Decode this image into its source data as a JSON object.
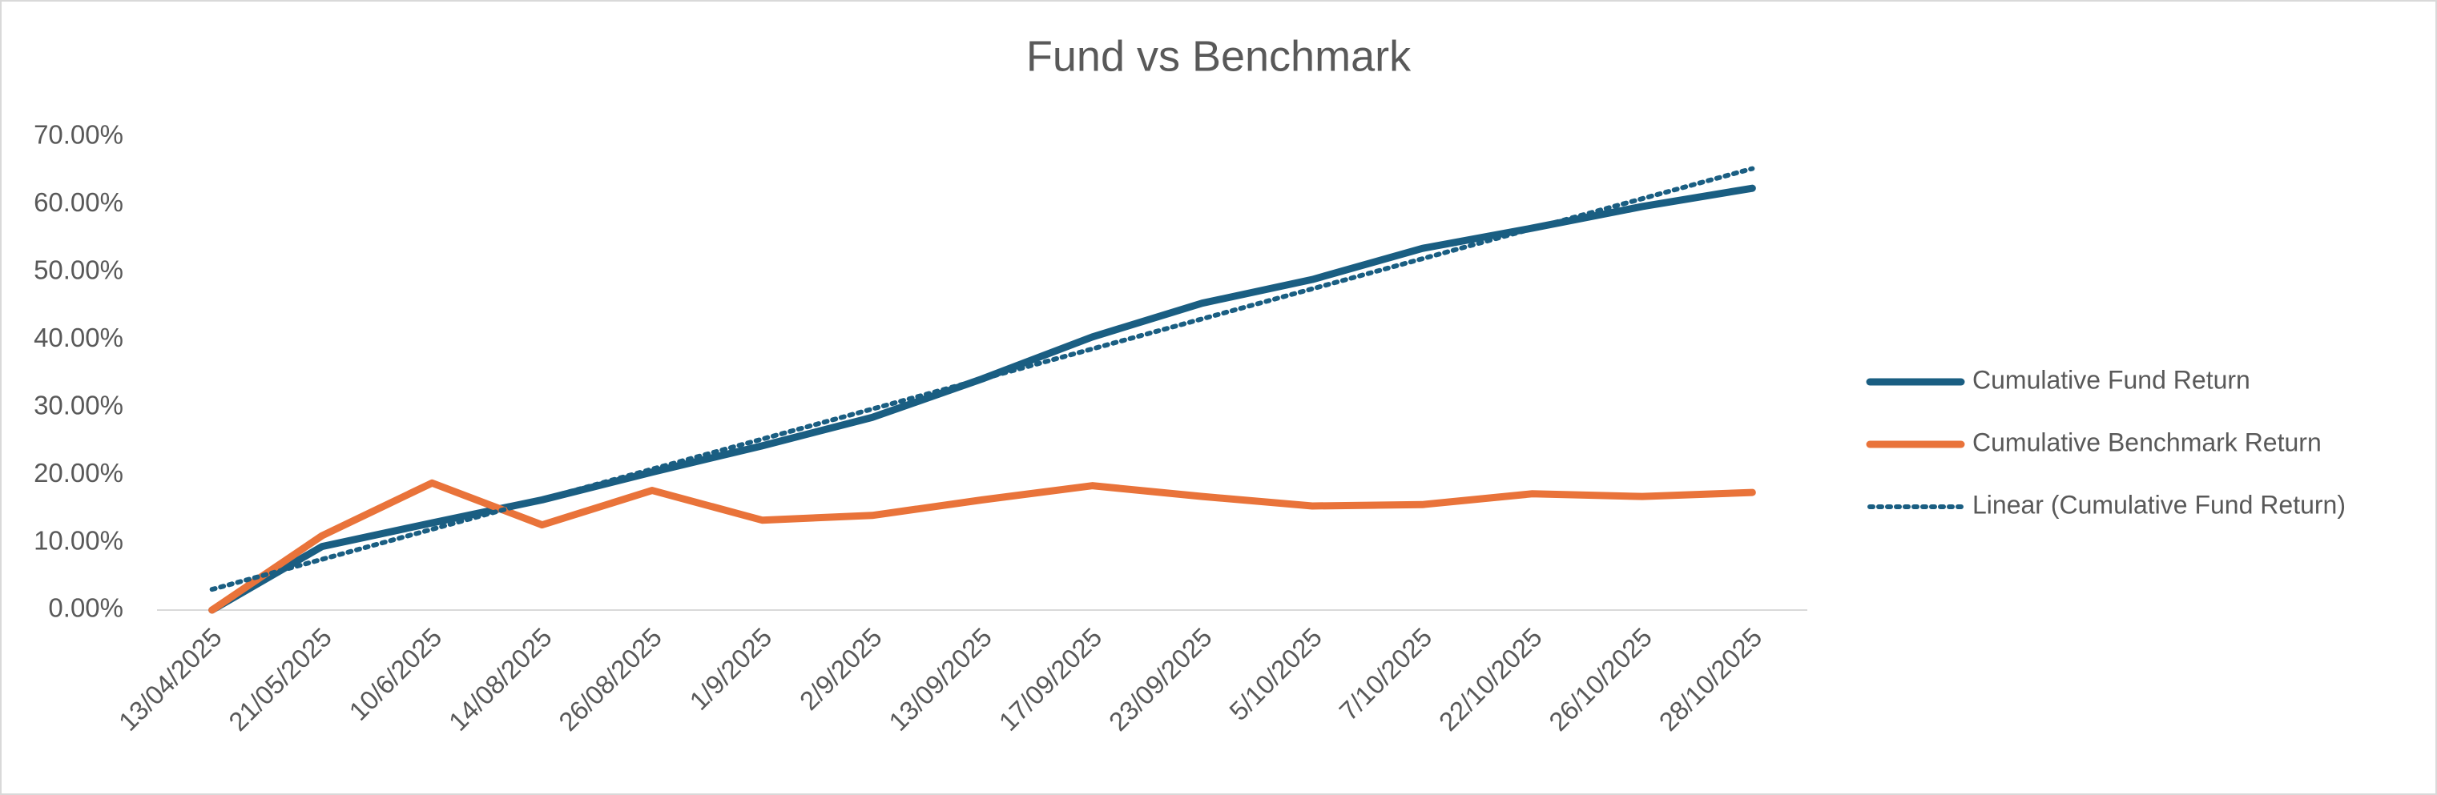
{
  "chart_data": {
    "type": "line",
    "title": "Fund vs Benchmark",
    "categories": [
      "13/04/2025",
      "21/05/2025",
      "10/6/2025",
      "14/08/2025",
      "26/08/2025",
      "1/9/2025",
      "2/9/2025",
      "13/09/2025",
      "17/09/2025",
      "23/09/2025",
      "5/10/2025",
      "7/10/2025",
      "22/10/2025",
      "26/10/2025",
      "28/10/2025"
    ],
    "series": [
      {
        "name": "Cumulative Fund Return",
        "color": "#1a5e82",
        "values": [
          0,
          9.4,
          12.9,
          16.3,
          20.4,
          24.3,
          28.5,
          34.2,
          40.4,
          45.4,
          48.9,
          53.5,
          56.5,
          59.7,
          62.4
        ]
      },
      {
        "name": "Cumulative Benchmark Return",
        "color": "#e9733a",
        "values": [
          0,
          11.0,
          18.8,
          12.6,
          17.7,
          13.3,
          14.0,
          16.3,
          18.4,
          16.8,
          15.4,
          15.6,
          17.2,
          16.8,
          17.4
        ]
      }
    ],
    "trendline": {
      "name": "Linear (Cumulative Fund Return)",
      "color": "#1a5e82",
      "type": "linear"
    },
    "ylim": [
      0,
      70
    ],
    "yticks": [
      {
        "value": 0,
        "label": "0.00%"
      },
      {
        "value": 10,
        "label": "10.00%"
      },
      {
        "value": 20,
        "label": "20.00%"
      },
      {
        "value": 30,
        "label": "30.00%"
      },
      {
        "value": 40,
        "label": "40.00%"
      },
      {
        "value": 50,
        "label": "50.00%"
      },
      {
        "value": 60,
        "label": "60.00%"
      },
      {
        "value": 70,
        "label": "70.00%"
      }
    ],
    "grid": false,
    "legend": "right"
  }
}
